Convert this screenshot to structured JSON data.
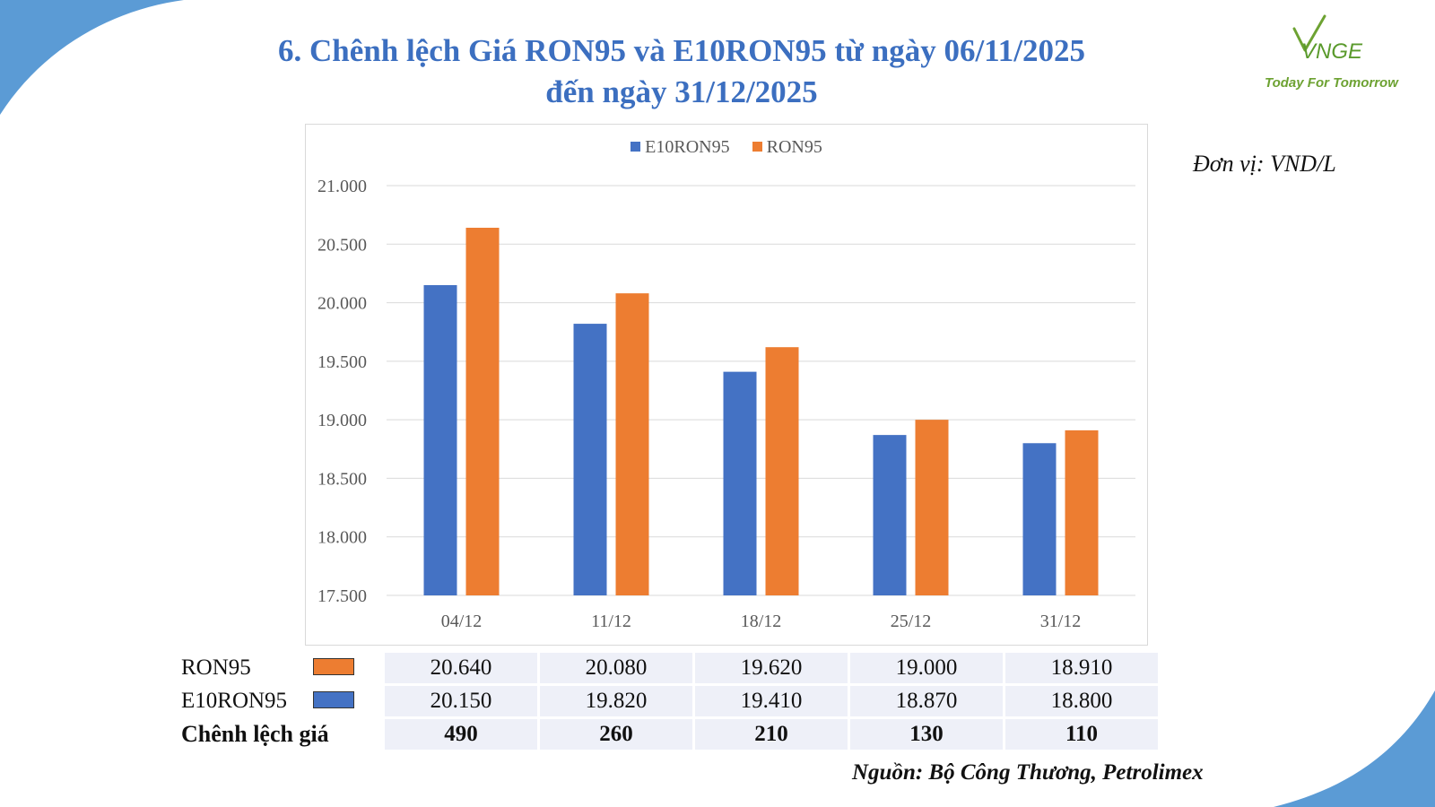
{
  "title": {
    "line1": "6. Chênh lệch Giá RON95 và E10RON95 từ ngày 06/11/2025",
    "line2": "đến ngày 31/12/2025"
  },
  "logo": {
    "brand": "VNGE",
    "tagline": "Today For Tomorrow"
  },
  "unit": "Đơn vị: VND/L",
  "source": "Nguồn: Bộ Công Thương, Petrolimex",
  "colors": {
    "title": "#3c6fc0",
    "e10": "#4472c4",
    "ron95": "#ed7d31",
    "deco": "#5b9bd5"
  },
  "chart_data": {
    "type": "bar",
    "categories": [
      "04/12",
      "11/12",
      "18/12",
      "25/12",
      "31/12"
    ],
    "series": [
      {
        "name": "E10RON95",
        "color": "#4472c4",
        "values": [
          20150,
          19820,
          19410,
          18870,
          18800
        ]
      },
      {
        "name": "RON95",
        "color": "#ed7d31",
        "values": [
          20640,
          20080,
          19620,
          19000,
          18910
        ]
      }
    ],
    "ylim": [
      17500,
      21000
    ],
    "yticks": [
      "17.500",
      "18.000",
      "18.500",
      "19.000",
      "19.500",
      "20.000",
      "20.500",
      "21.000"
    ],
    "legend": "top",
    "grid": true
  },
  "table": {
    "rows": [
      {
        "label": "RON95",
        "swatch": "#ed7d31",
        "values": [
          "20.640",
          "20.080",
          "19.620",
          "19.000",
          "18.910"
        ]
      },
      {
        "label": "E10RON95",
        "swatch": "#4472c4",
        "values": [
          "20.150",
          "19.820",
          "19.410",
          "18.870",
          "18.800"
        ]
      },
      {
        "label": "Chênh lệch giá",
        "values": [
          "490",
          "260",
          "210",
          "130",
          "110"
        ]
      }
    ]
  }
}
